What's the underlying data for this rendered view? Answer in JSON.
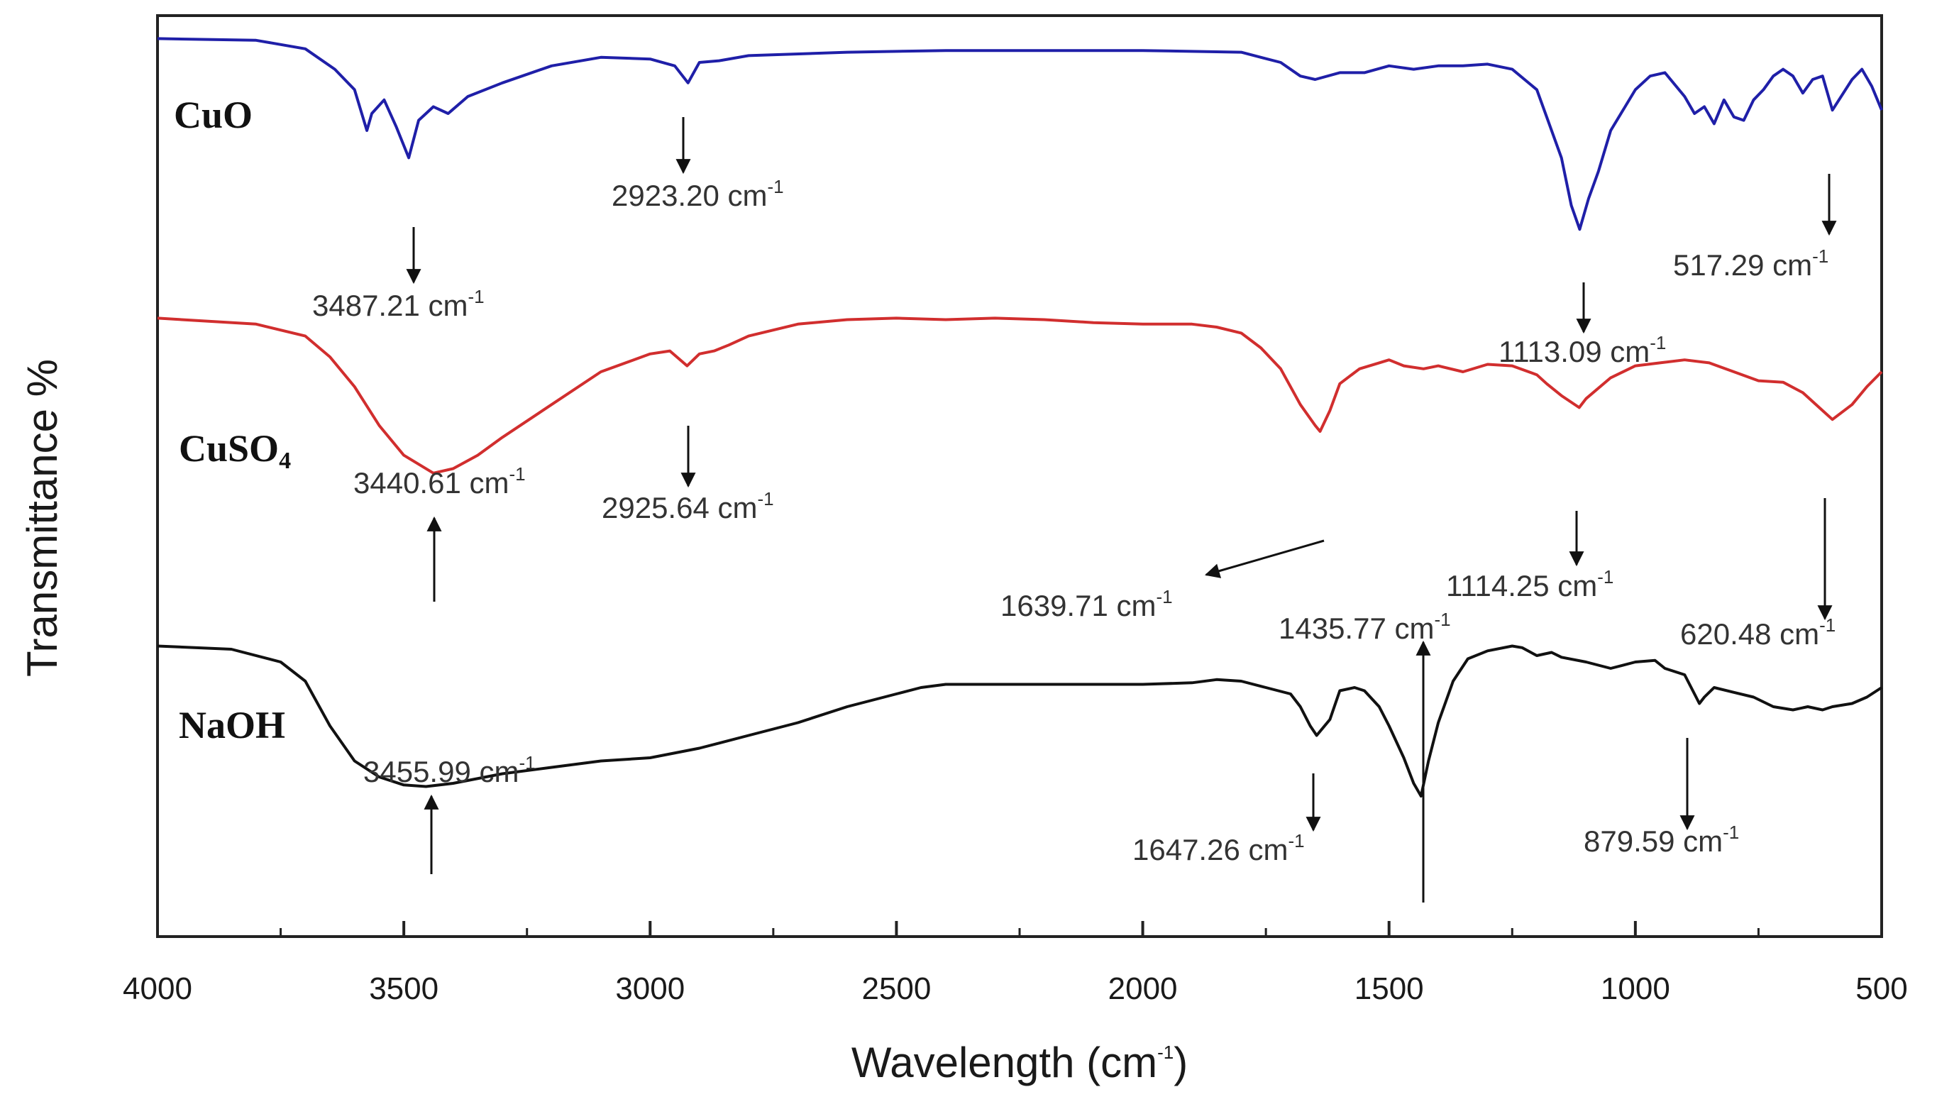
{
  "chart_data": {
    "type": "line",
    "title": "",
    "xlabel": "Wavelength (cm",
    "xlabel_sup": "-1",
    "xlabel_close": ")",
    "ylabel": "Transmittance %",
    "xlim": [
      4000,
      500
    ],
    "x_reversed": true,
    "ylim": [
      0,
      100
    ],
    "y_ticks_shown": false,
    "grid": false,
    "x_ticks": [
      "4000",
      "3500",
      "3000",
      "2500",
      "2000",
      "1500",
      "1000",
      "500"
    ],
    "x_tick_values": [
      4000,
      3500,
      3000,
      2500,
      2000,
      1500,
      1000,
      500
    ],
    "x_minor_tick_values": [
      3750,
      3250,
      2750,
      2250,
      1750,
      1250,
      750
    ],
    "series": [
      {
        "name": "CuO",
        "color": "#1f1fa8",
        "x": [
          4000,
          3800,
          3700,
          3640,
          3600,
          3575,
          3565,
          3540,
          3515,
          3490,
          3470,
          3440,
          3410,
          3370,
          3300,
          3200,
          3100,
          3000,
          2950,
          2923,
          2900,
          2860,
          2800,
          2600,
          2400,
          2200,
          2000,
          1800,
          1720,
          1680,
          1650,
          1600,
          1550,
          1500,
          1450,
          1400,
          1350,
          1300,
          1250,
          1200,
          1180,
          1150,
          1130,
          1113,
          1095,
          1075,
          1050,
          1000,
          970,
          940,
          900,
          880,
          860,
          840,
          820,
          800,
          780,
          760,
          740,
          720,
          700,
          680,
          660,
          640,
          620,
          600,
          560,
          540,
          520,
          500
        ],
        "y": [
          97,
          96.5,
          94,
          88,
          82,
          70,
          75,
          79,
          71,
          62,
          73,
          77,
          75,
          80,
          84,
          89,
          91.5,
          91,
          89,
          84,
          90,
          90.5,
          92,
          93,
          93.5,
          93.5,
          93.5,
          93,
          90,
          86,
          85,
          87,
          87,
          89,
          88,
          89,
          89,
          89.5,
          88,
          82,
          74,
          62,
          48,
          41,
          50,
          58,
          70,
          82,
          86,
          87,
          80,
          75,
          77,
          72,
          79,
          74,
          73,
          79,
          82,
          86,
          88,
          86,
          81,
          85,
          86,
          76,
          85,
          88,
          83,
          76
        ]
      },
      {
        "name": "CuSO",
        "name_sub": "4",
        "color": "#d12e2e",
        "x": [
          4000,
          3800,
          3700,
          3650,
          3600,
          3550,
          3500,
          3440,
          3400,
          3350,
          3300,
          3200,
          3100,
          3000,
          2960,
          2925,
          2900,
          2870,
          2840,
          2800,
          2700,
          2600,
          2500,
          2400,
          2300,
          2200,
          2100,
          2000,
          1900,
          1850,
          1800,
          1760,
          1720,
          1680,
          1650,
          1640,
          1620,
          1600,
          1560,
          1520,
          1500,
          1470,
          1430,
          1400,
          1350,
          1300,
          1250,
          1200,
          1180,
          1150,
          1114,
          1100,
          1050,
          1000,
          950,
          900,
          850,
          800,
          750,
          700,
          660,
          640,
          620,
          600,
          560,
          530,
          500
        ],
        "y": [
          98,
          96,
          92,
          85,
          75,
          62,
          52,
          46,
          47.5,
          52,
          58,
          69,
          80,
          86,
          87,
          82,
          86,
          87,
          89,
          92,
          96,
          97.5,
          98,
          97.5,
          98,
          97.5,
          96.5,
          96,
          96,
          95,
          93,
          88,
          81,
          69,
          62,
          60,
          67,
          76,
          81,
          83,
          84,
          82,
          81,
          82,
          80,
          82.5,
          82,
          79,
          76,
          72,
          68,
          71,
          78,
          82,
          83,
          84,
          83,
          80,
          77,
          76.5,
          73,
          70,
          67,
          64,
          69,
          75,
          80
        ]
      },
      {
        "name": "NaOH",
        "color": "#111111",
        "x": [
          4000,
          3850,
          3750,
          3700,
          3650,
          3600,
          3550,
          3500,
          3455,
          3400,
          3300,
          3200,
          3100,
          3000,
          2900,
          2800,
          2700,
          2600,
          2500,
          2450,
          2400,
          2300,
          2200,
          2100,
          2000,
          1900,
          1850,
          1800,
          1750,
          1700,
          1680,
          1660,
          1647,
          1620,
          1600,
          1570,
          1550,
          1520,
          1500,
          1470,
          1450,
          1435,
          1420,
          1400,
          1370,
          1340,
          1300,
          1250,
          1230,
          1200,
          1170,
          1150,
          1100,
          1050,
          1000,
          960,
          940,
          900,
          880,
          870,
          860,
          840,
          800,
          760,
          720,
          680,
          650,
          620,
          600,
          560,
          530,
          500
        ],
        "y": [
          91,
          90,
          86,
          80,
          66,
          55,
          50,
          47.5,
          47,
          48,
          51,
          53,
          55,
          56,
          59,
          63,
          67,
          72,
          76,
          78,
          79,
          79,
          79,
          79,
          79,
          79.5,
          80.5,
          80,
          78,
          76,
          72,
          66,
          63,
          68,
          77,
          78,
          77,
          72,
          66,
          56,
          48,
          44,
          55,
          67,
          80,
          87,
          89.5,
          91,
          90.5,
          88,
          89,
          87.5,
          86,
          84,
          86,
          86.5,
          84,
          82,
          76,
          73,
          75,
          78,
          76.5,
          75,
          72,
          71,
          72,
          71,
          72,
          73,
          75,
          78
        ]
      }
    ],
    "annotations": [
      {
        "series": "CuO",
        "text": "3487.21 cm",
        "sup": "-1",
        "at_x": 3487.21,
        "direction": "down"
      },
      {
        "series": "CuO",
        "text": "2923.20 cm",
        "sup": "-1",
        "at_x": 2923.2,
        "direction": "down"
      },
      {
        "series": "CuO",
        "text": "1113.09 cm",
        "sup": "-1",
        "at_x": 1113.09,
        "direction": "down"
      },
      {
        "series": "CuO",
        "text": "517.29 cm",
        "sup": "-1",
        "at_x": 517.29,
        "direction": "down"
      },
      {
        "series": "CuSO4",
        "text": "3440.61 cm",
        "sup": "-1",
        "at_x": 3440.61,
        "direction": "up"
      },
      {
        "series": "CuSO4",
        "text": "2925.64 cm",
        "sup": "-1",
        "at_x": 2925.64,
        "direction": "down"
      },
      {
        "series": "CuSO4",
        "text": "1639.71 cm",
        "sup": "-1",
        "at_x": 1639.71,
        "direction": "diagonal"
      },
      {
        "series": "CuSO4",
        "text": "1114.25 cm",
        "sup": "-1",
        "at_x": 1114.25,
        "direction": "down"
      },
      {
        "series": "CuSO4",
        "text": "620.48 cm",
        "sup": "-1",
        "at_x": 620.48,
        "direction": "down"
      },
      {
        "series": "NaOH",
        "text": "3455.99 cm",
        "sup": "-1",
        "at_x": 3455.99,
        "direction": "up"
      },
      {
        "series": "NaOH",
        "text": "1647.26 cm",
        "sup": "-1",
        "at_x": 1647.26,
        "direction": "down"
      },
      {
        "series": "NaOH",
        "text": "1435.77 cm",
        "sup": "-1",
        "at_x": 1435.77,
        "direction": "up"
      },
      {
        "series": "NaOH",
        "text": "879.59 cm",
        "sup": "-1",
        "at_x": 879.59,
        "direction": "down"
      }
    ]
  }
}
